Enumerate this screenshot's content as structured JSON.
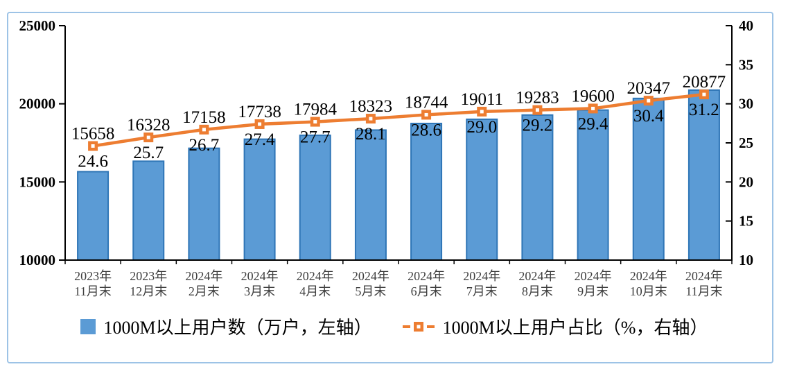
{
  "chart_data": {
    "type": "combo",
    "subtype": [
      "bar",
      "line"
    ],
    "title": "",
    "categories": [
      [
        "2023年",
        "11月末"
      ],
      [
        "2023年",
        "12月末"
      ],
      [
        "2024年",
        "2月末"
      ],
      [
        "2024年",
        "3月末"
      ],
      [
        "2024年",
        "4月末"
      ],
      [
        "2024年",
        "5月末"
      ],
      [
        "2024年",
        "6月末"
      ],
      [
        "2024年",
        "7月末"
      ],
      [
        "2024年",
        "8月末"
      ],
      [
        "2024年",
        "9月末"
      ],
      [
        "2024年",
        "10月末"
      ],
      [
        "2024年",
        "11月末"
      ]
    ],
    "series": [
      {
        "name": "1000M以上用户数（万户，左轴）",
        "type": "bar",
        "axis": "left",
        "values": [
          15658,
          16328,
          17158,
          17738,
          17984,
          18323,
          18744,
          19011,
          19283,
          19600,
          20347,
          20877
        ],
        "color": "#5B9BD5",
        "border_color": "#2E75B6"
      },
      {
        "name": "1000M以上用户占比（%，右轴）",
        "type": "line",
        "axis": "right",
        "values": [
          24.6,
          25.7,
          26.7,
          27.4,
          27.7,
          28.1,
          28.6,
          29.0,
          29.2,
          29.4,
          30.4,
          31.2
        ],
        "value_decimals": 1,
        "color": "#ED7D31",
        "marker": "square-with-white-center"
      }
    ],
    "left_axis": {
      "min": 10000,
      "max": 25000,
      "ticks": [
        10000,
        15000,
        20000,
        25000
      ]
    },
    "right_axis": {
      "min": 10,
      "max": 40,
      "ticks": [
        10,
        15,
        20,
        25,
        30,
        35,
        40
      ]
    },
    "grid": false,
    "data_labels": true,
    "legend_position": "bottom",
    "axis_color": "#000000",
    "x_label_color": "#3f3f3f",
    "frame_border_color": "#9DC3E6",
    "background_color": "#ffffff"
  }
}
